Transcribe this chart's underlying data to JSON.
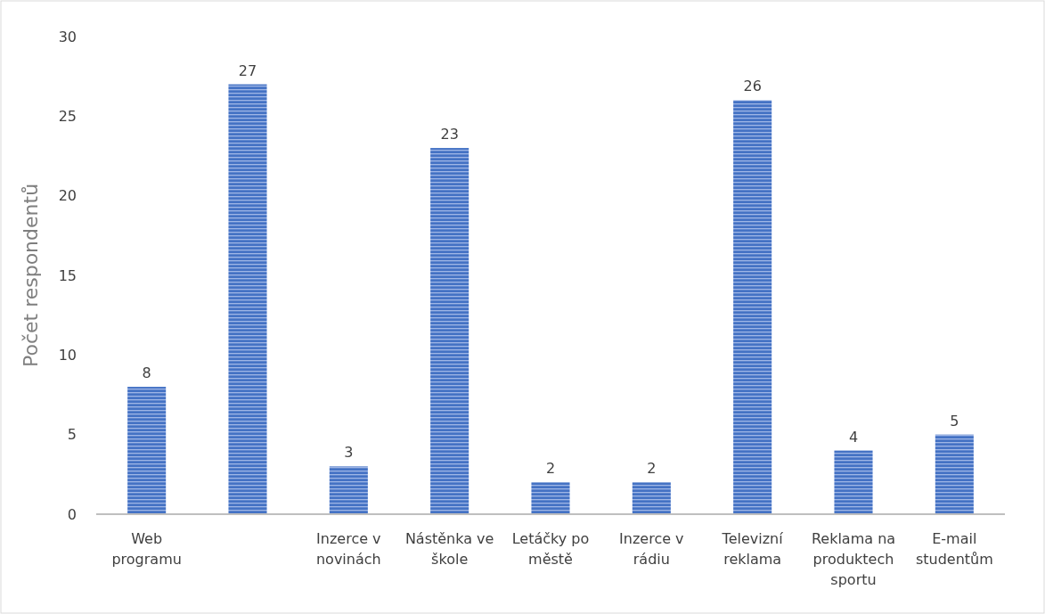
{
  "chart_data": {
    "type": "bar",
    "ylabel": "Počet respondentů",
    "categories": [
      "Web programu",
      null,
      "Inzerce v novinách",
      "Nástěnka ve škole",
      "Letáčky po městě",
      "Inzerce v rádiu",
      "Televizní reklama",
      "Reklama na produktech sportu",
      "E-mail studentům"
    ],
    "values": [
      8,
      27,
      3,
      23,
      2,
      2,
      26,
      4,
      5
    ],
    "color": "#4472c4",
    "ylim": [
      0,
      30
    ],
    "yticks": [
      0,
      5,
      10,
      15,
      20,
      25,
      30
    ],
    "grid": false,
    "data_labels": true
  }
}
